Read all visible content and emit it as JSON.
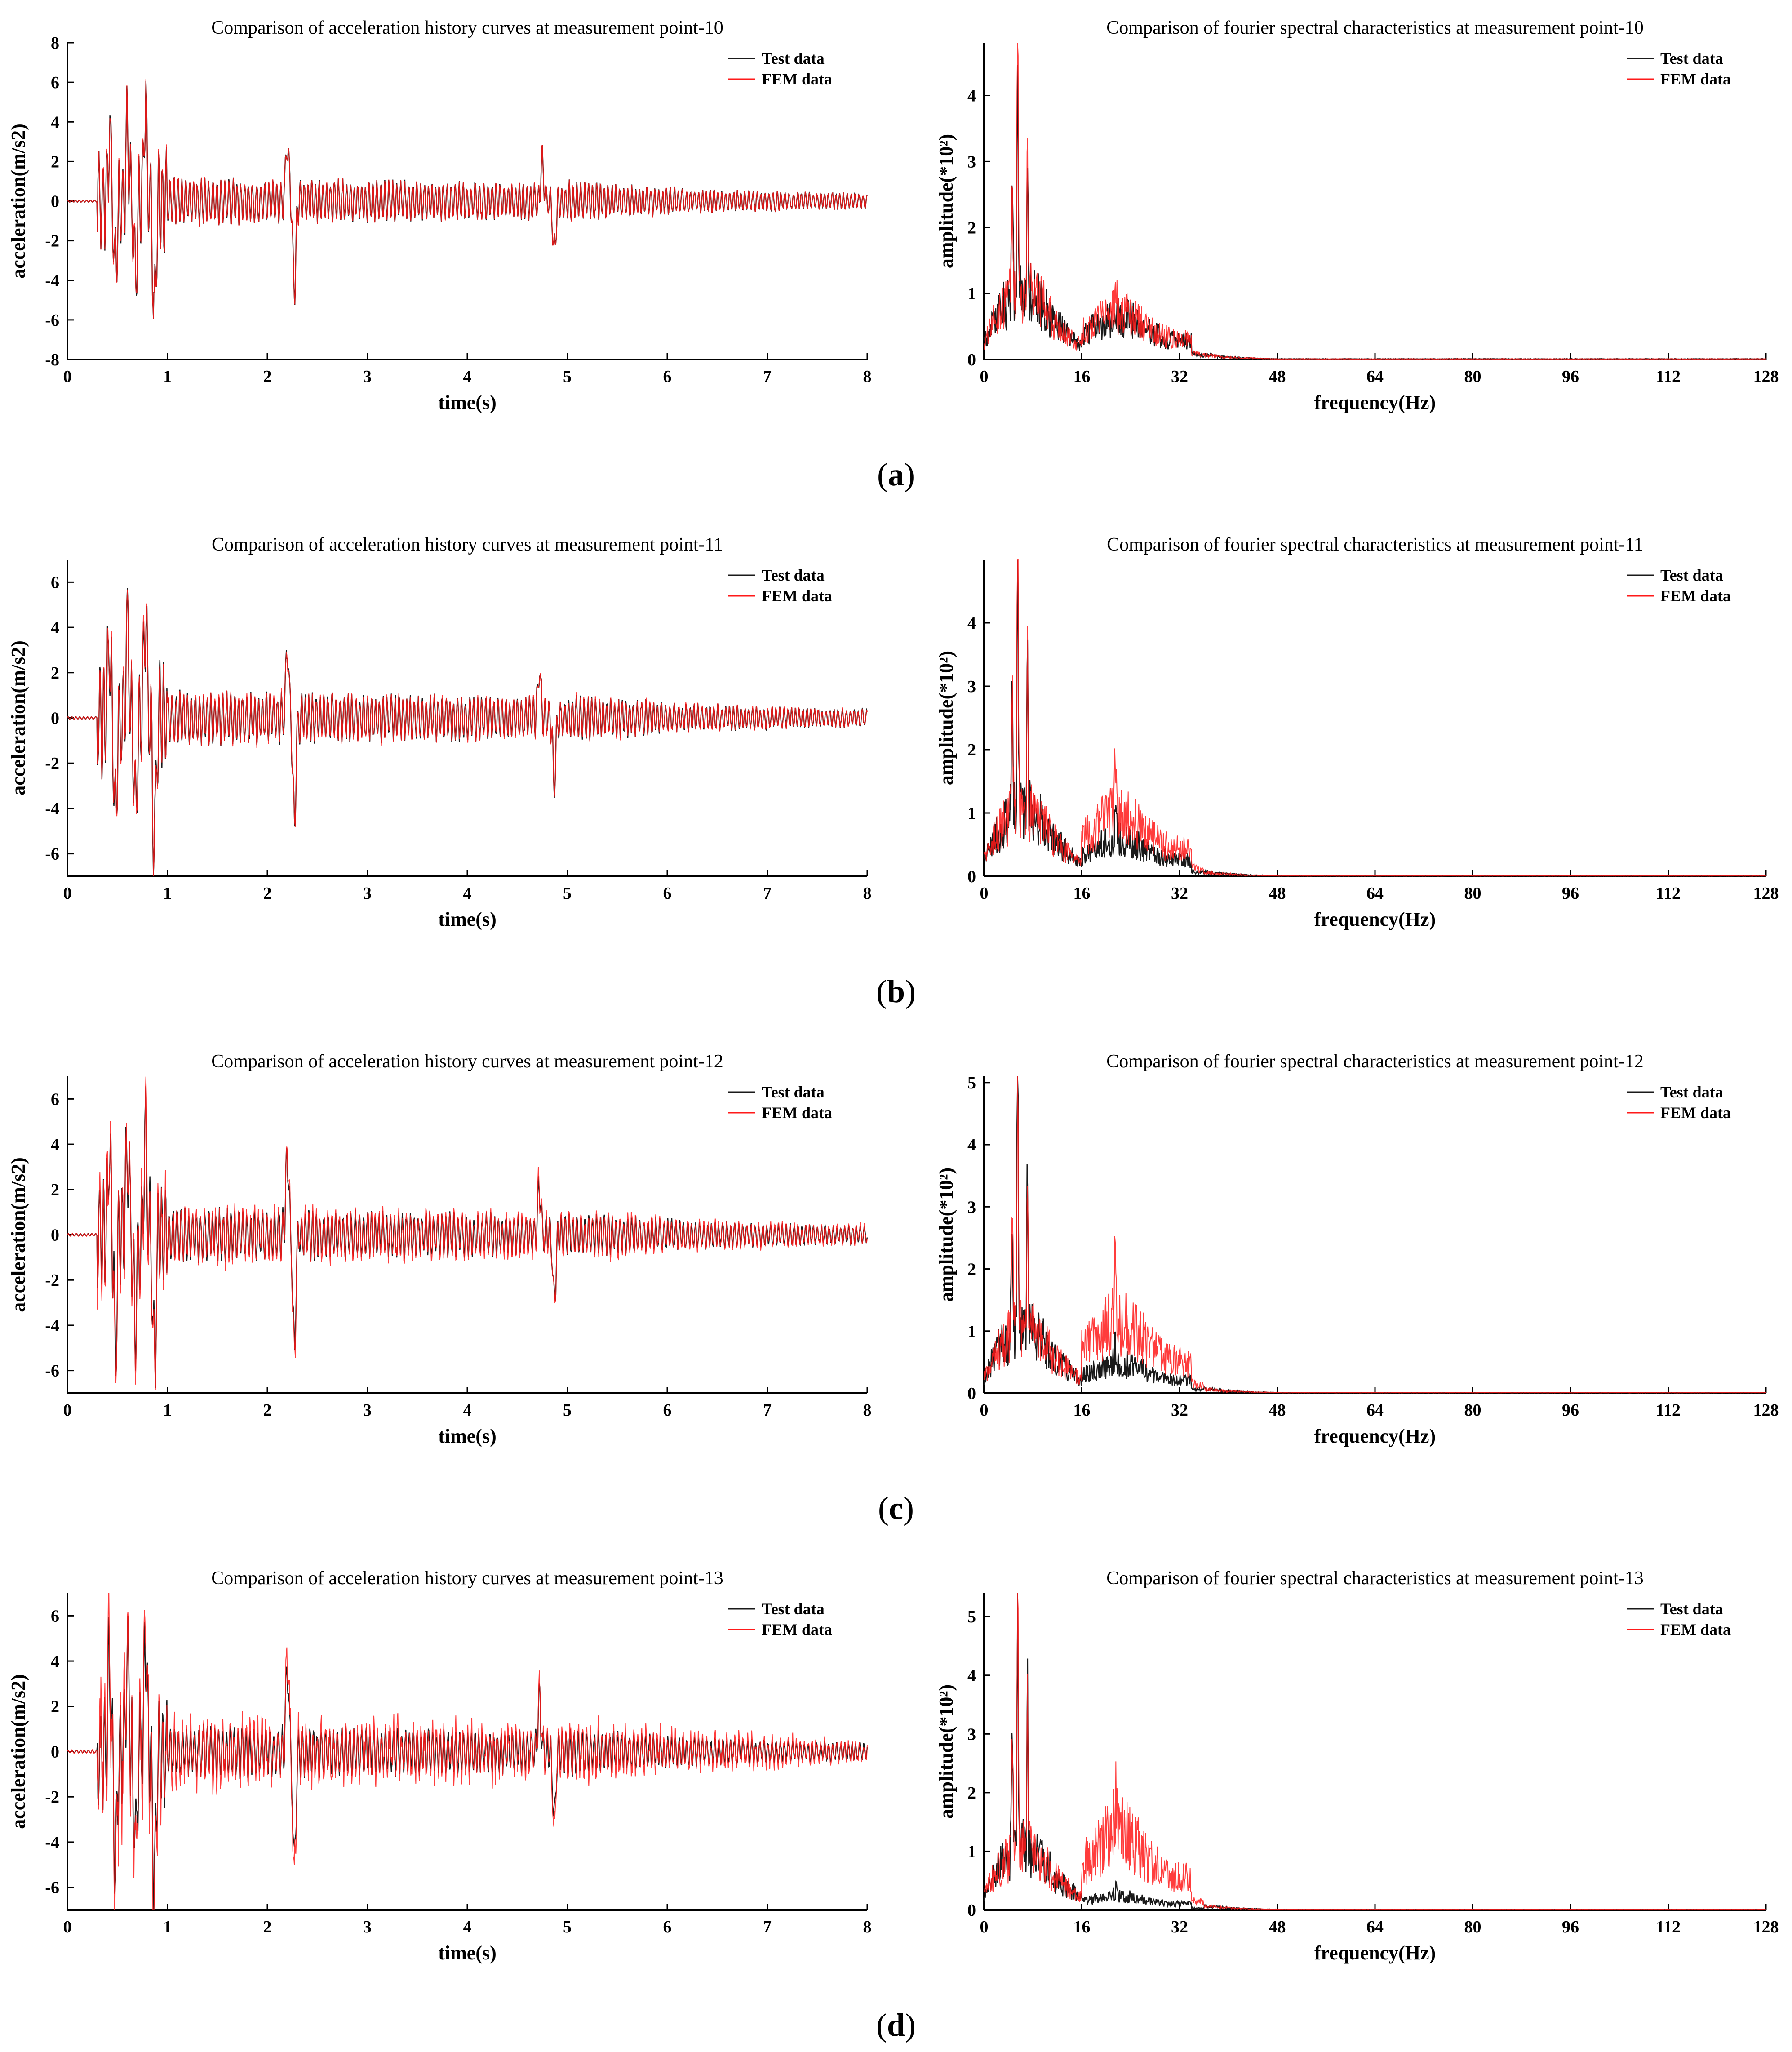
{
  "figure": {
    "captions": [
      "a",
      "b",
      "c",
      "d"
    ]
  },
  "colors": {
    "test": "#1a1a1a",
    "fem": "#ff1a1a"
  },
  "legend": {
    "test": "Test data",
    "fem": "FEM data"
  },
  "chart_data": [
    {
      "id": "a-left",
      "panel": "a",
      "kind": "time",
      "type": "line",
      "title": "Comparison of acceleration history curves at measurement point-10",
      "xlabel": "time(s)",
      "ylabel": "acceleration(m/s2)",
      "xlim": [
        0,
        8
      ],
      "ylim": [
        -8,
        8
      ],
      "xticks": [
        0,
        1,
        2,
        3,
        4,
        5,
        6,
        7,
        8
      ],
      "yticks": [
        -8,
        -6,
        -4,
        -2,
        0,
        2,
        4,
        6,
        8
      ],
      "legend_loc": "top-right",
      "series": [
        {
          "name": "Test data"
        },
        {
          "name": "FEM data"
        }
      ],
      "signal": {
        "seed": 11,
        "fem_scale": 1.0,
        "fem_extra": 0.05,
        "peaks": [
          [
            0.42,
            3.2
          ],
          [
            0.48,
            -4.0
          ],
          [
            0.6,
            4.0
          ],
          [
            0.68,
            -4.0
          ],
          [
            0.78,
            4.5
          ],
          [
            0.87,
            -6.0
          ],
          [
            2.2,
            3.2
          ],
          [
            2.27,
            -4.4
          ],
          [
            4.87,
            -2.6
          ],
          [
            4.75,
            2.0
          ]
        ]
      }
    },
    {
      "id": "a-right",
      "panel": "a",
      "kind": "freq",
      "type": "line",
      "title": "Comparison of fourier spectral characteristics at measurement point-10",
      "xlabel": "frequency(Hz)",
      "ylabel": "amplitude(*10²)",
      "xlim": [
        0,
        128
      ],
      "ylim": [
        0,
        4.8
      ],
      "xticks": [
        0,
        16,
        32,
        48,
        64,
        80,
        96,
        112,
        128
      ],
      "yticks": [
        0,
        1,
        2,
        3,
        4
      ],
      "legend_loc": "top-right",
      "series": [
        {
          "name": "Test data"
        },
        {
          "name": "FEM data"
        }
      ],
      "signal": {
        "seed": 21,
        "main_peak": 4.7,
        "test_peak": 3.1,
        "second_peak": 2.6,
        "fem_high_scale": 1.05,
        "test_high_scale": 0.95
      }
    },
    {
      "id": "b-left",
      "panel": "b",
      "kind": "time",
      "type": "line",
      "title": "Comparison of acceleration history curves at measurement point-11",
      "xlabel": "time(s)",
      "ylabel": "acceleration(m/s2)",
      "xlim": [
        0,
        8
      ],
      "ylim": [
        -7,
        7
      ],
      "xticks": [
        0,
        1,
        2,
        3,
        4,
        5,
        6,
        7,
        8
      ],
      "yticks": [
        -6,
        -4,
        -2,
        0,
        2,
        4,
        6
      ],
      "legend_loc": "top-right",
      "series": [
        {
          "name": "Test data"
        },
        {
          "name": "FEM data"
        }
      ],
      "signal": {
        "seed": 12,
        "fem_scale": 1.0,
        "fem_extra": 0.12,
        "peaks": [
          [
            0.42,
            3.4
          ],
          [
            0.48,
            -4.4
          ],
          [
            0.6,
            4.0
          ],
          [
            0.68,
            -4.0
          ],
          [
            0.78,
            4.5
          ],
          [
            0.87,
            -6.0
          ],
          [
            2.2,
            3.3
          ],
          [
            2.27,
            -4.6
          ],
          [
            4.87,
            -2.8
          ],
          [
            4.72,
            2.1
          ]
        ]
      }
    },
    {
      "id": "b-right",
      "panel": "b",
      "kind": "freq",
      "type": "line",
      "title": "Comparison of fourier spectral characteristics at measurement point-11",
      "xlabel": "frequency(Hz)",
      "ylabel": "amplitude(*10²)",
      "xlim": [
        0,
        128
      ],
      "ylim": [
        0,
        5
      ],
      "xticks": [
        0,
        16,
        32,
        48,
        64,
        80,
        96,
        112,
        128
      ],
      "yticks": [
        0,
        1,
        2,
        3,
        4
      ],
      "legend_loc": "top-right",
      "series": [
        {
          "name": "Test data"
        },
        {
          "name": "FEM data"
        }
      ],
      "signal": {
        "seed": 22,
        "main_peak": 4.9,
        "test_peak": 4.4,
        "second_peak": 2.9,
        "fem_high_scale": 1.45,
        "test_high_scale": 0.85
      }
    },
    {
      "id": "c-left",
      "panel": "c",
      "kind": "time",
      "type": "line",
      "title": "Comparison of acceleration history curves at measurement point-12",
      "xlabel": "time(s)",
      "ylabel": "acceleration(m/s2)",
      "xlim": [
        0,
        8
      ],
      "ylim": [
        -7,
        7
      ],
      "xticks": [
        0,
        1,
        2,
        3,
        4,
        5,
        6,
        7,
        8
      ],
      "yticks": [
        -6,
        -4,
        -2,
        0,
        2,
        4,
        6
      ],
      "legend_loc": "top-right",
      "series": [
        {
          "name": "Test data"
        },
        {
          "name": "FEM data"
        }
      ],
      "signal": {
        "seed": 13,
        "fem_scale": 1.05,
        "fem_extra": 0.3,
        "peaks": [
          [
            0.42,
            3.7
          ],
          [
            0.48,
            -4.8
          ],
          [
            0.6,
            4.1
          ],
          [
            0.68,
            -4.2
          ],
          [
            0.78,
            4.5
          ],
          [
            0.87,
            -5.8
          ],
          [
            2.2,
            3.6
          ],
          [
            2.27,
            -4.9
          ],
          [
            4.87,
            -2.9
          ],
          [
            4.72,
            2.2
          ]
        ]
      }
    },
    {
      "id": "c-right",
      "panel": "c",
      "kind": "freq",
      "type": "line",
      "title": "Comparison of fourier spectral characteristics at measurement point-12",
      "xlabel": "frequency(Hz)",
      "ylabel": "amplitude(*10²)",
      "xlim": [
        0,
        128
      ],
      "ylim": [
        0,
        5.1
      ],
      "xticks": [
        0,
        16,
        32,
        48,
        64,
        80,
        96,
        112,
        128
      ],
      "yticks": [
        0,
        1,
        2,
        3,
        4,
        5
      ],
      "legend_loc": "top-right",
      "series": [
        {
          "name": "Test data"
        },
        {
          "name": "FEM data"
        }
      ],
      "signal": {
        "seed": 23,
        "main_peak": 5.0,
        "test_peak": 5.0,
        "second_peak": 3.0,
        "fem_high_scale": 1.7,
        "test_high_scale": 0.7
      }
    },
    {
      "id": "d-left",
      "panel": "d",
      "kind": "time",
      "type": "line",
      "title": "Comparison of acceleration history curves at measurement point-13",
      "xlabel": "time(s)",
      "ylabel": "acceleration(m/s2)",
      "xlim": [
        0,
        8
      ],
      "ylim": [
        -7,
        7
      ],
      "xticks": [
        0,
        1,
        2,
        3,
        4,
        5,
        6,
        7,
        8
      ],
      "yticks": [
        -6,
        -4,
        -2,
        0,
        2,
        4,
        6
      ],
      "legend_loc": "top-right",
      "series": [
        {
          "name": "Test data"
        },
        {
          "name": "FEM data"
        }
      ],
      "signal": {
        "seed": 14,
        "fem_scale": 1.15,
        "fem_extra": 0.55,
        "peaks": [
          [
            0.42,
            4.2
          ],
          [
            0.48,
            -5.2
          ],
          [
            0.6,
            4.2
          ],
          [
            0.68,
            -4.4
          ],
          [
            0.78,
            4.5
          ],
          [
            0.87,
            -5.6
          ],
          [
            2.2,
            3.8
          ],
          [
            2.27,
            -5.0
          ],
          [
            4.87,
            -3.0
          ],
          [
            4.72,
            2.3
          ]
        ]
      }
    },
    {
      "id": "d-right",
      "panel": "d",
      "kind": "freq",
      "type": "line",
      "title": "Comparison of fourier spectral characteristics at measurement point-13",
      "xlabel": "frequency(Hz)",
      "ylabel": "amplitude(*10²)",
      "xlim": [
        0,
        128
      ],
      "ylim": [
        0,
        5.4
      ],
      "xticks": [
        0,
        16,
        32,
        48,
        64,
        80,
        96,
        112,
        128
      ],
      "yticks": [
        0,
        1,
        2,
        3,
        4,
        5
      ],
      "legend_loc": "top-right",
      "series": [
        {
          "name": "Test data"
        },
        {
          "name": "FEM data"
        }
      ],
      "signal": {
        "seed": 24,
        "main_peak": 5.4,
        "test_peak": 4.2,
        "second_peak": 3.4,
        "fem_high_scale": 1.9,
        "test_high_scale": 0.35
      }
    }
  ]
}
